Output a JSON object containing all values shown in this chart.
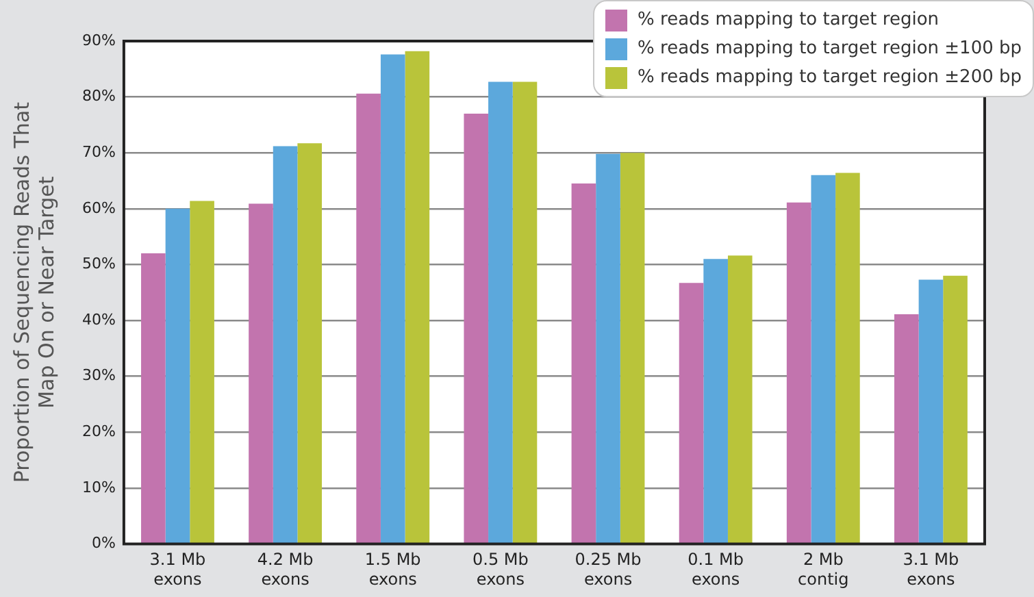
{
  "chart_data": {
    "type": "bar",
    "ylabel": "Proportion of Sequencing Reads That Map On or Near Target",
    "categories": [
      "3.1 Mb exons",
      "4.2 Mb exons",
      "1.5 Mb exons",
      "0.5 Mb exons",
      "0.25 Mb exons",
      "0.1 Mb exons",
      "2 Mb contig",
      "3.1 Mb exons"
    ],
    "series": [
      {
        "name": "% reads mapping to target region",
        "color": "#c274ae",
        "values": [
          52.0,
          60.9,
          80.6,
          77.0,
          64.5,
          46.7,
          61.1,
          41.1
        ]
      },
      {
        "name": "% reads mapping to target region ±100 bp",
        "color": "#5ca8dc",
        "values": [
          60.0,
          71.2,
          87.6,
          82.7,
          69.8,
          51.0,
          66.0,
          47.3
        ]
      },
      {
        "name": "% reads mapping to target region ±200 bp",
        "color": "#b9c43a",
        "values": [
          61.4,
          71.7,
          88.2,
          82.7,
          70.0,
          51.6,
          66.4,
          48.0
        ]
      }
    ],
    "ylim": [
      0,
      90
    ],
    "yticks": [
      {
        "value": 0,
        "label": "0%"
      },
      {
        "value": 10,
        "label": "10%"
      },
      {
        "value": 20,
        "label": "20%"
      },
      {
        "value": 30,
        "label": "30%"
      },
      {
        "value": 40,
        "label": "40%"
      },
      {
        "value": 50,
        "label": "50%"
      },
      {
        "value": 60,
        "label": "60%"
      },
      {
        "value": 70,
        "label": "70%"
      },
      {
        "value": 80,
        "label": "80%"
      },
      {
        "value": 90,
        "label": "90%"
      }
    ],
    "grid": "y",
    "legend": "top right"
  }
}
